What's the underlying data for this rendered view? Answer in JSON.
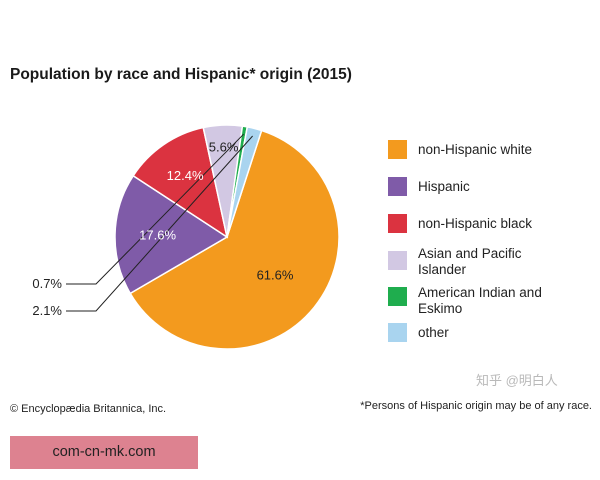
{
  "chart_data": {
    "type": "pie",
    "title": "Population by race and Hispanic* origin (2015)",
    "slices": [
      {
        "name": "non-Hispanic white",
        "value": 61.6,
        "label": "61.6%",
        "color": "#f39a1e"
      },
      {
        "name": "Hispanic",
        "value": 17.6,
        "label": "17.6%",
        "color": "#7f5ba8"
      },
      {
        "name": "non-Hispanic black",
        "value": 12.4,
        "label": "12.4%",
        "color": "#db3340"
      },
      {
        "name": "Asian and Pacific Islander",
        "value": 5.6,
        "label": "5.6%",
        "color": "#d2c8e3"
      },
      {
        "name": "American Indian and Eskimo",
        "value": 0.7,
        "label": "0.7%",
        "color": "#1fad4e"
      },
      {
        "name": "other",
        "value": 2.1,
        "label": "2.1%",
        "color": "#a9d4ef"
      }
    ],
    "legend_position": "right"
  },
  "footer": {
    "credit": "© Encyclopædia Britannica, Inc.",
    "footnote": "*Persons of Hispanic origin may be of any race."
  },
  "watermark": "知乎 @明白人",
  "banner": "com-cn-mk.com"
}
